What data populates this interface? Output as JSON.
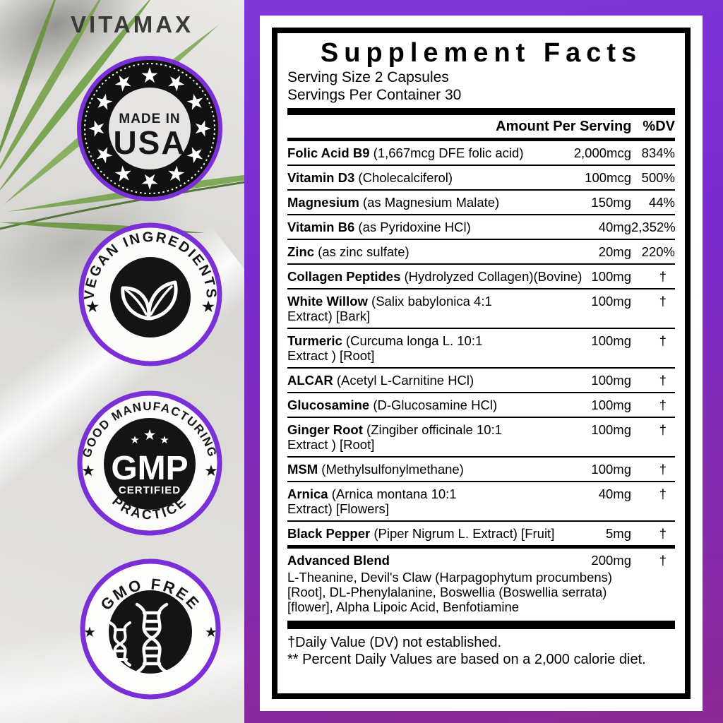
{
  "brand": {
    "name": "VITAMAX"
  },
  "icons": {
    "star": "★",
    "leaf": "leaf-sprout",
    "dna": "dna-helix",
    "dagger": "†"
  },
  "colors": {
    "accent_purple": "#7b2fd6",
    "gradient_top": "#8136dc",
    "gradient_bottom": "#8f2898",
    "panel_black": "#000000",
    "leaf_green": "#74a14a",
    "brand_gray": "#3a3a38"
  },
  "badges": {
    "made_in_usa": {
      "line1": "MADE IN",
      "line2": "USA"
    },
    "vegan": {
      "arc": "VEGAN INGREDIENTS"
    },
    "gmp": {
      "arc_top": "GOOD MANUFACTURING",
      "arc_bottom": "PRACTICE",
      "center": "GMP",
      "sub": "CERTIFIED"
    },
    "gmo": {
      "arc": "GMO FREE"
    }
  },
  "panel": {
    "title": "Supplement Facts",
    "serving_size": "Serving Size 2 Capsules",
    "servings_per_container": "Servings Per Container 30",
    "col_amount": "Amount Per Serving",
    "col_dv": "%DV",
    "rows": [
      {
        "name": "Folic Acid B9",
        "desc": " (1,667mcg DFE folic acid)",
        "amount": "2,000mcg",
        "dv": "834%"
      },
      {
        "name": "Vitamin D3",
        "desc": " (Cholecalciferol)",
        "amount": "100mcg",
        "dv": "500%"
      },
      {
        "name": "Magnesium",
        "desc": " (as Magnesium Malate)",
        "amount": "150mg",
        "dv": "44%"
      },
      {
        "name": "Vitamin B6",
        "desc": " (as Pyridoxine HCl)",
        "amount": "40mg",
        "dv": "2,352%"
      },
      {
        "name": "Zinc",
        "desc": " (as zinc sulfate)",
        "amount": "20mg",
        "dv": "220%"
      },
      {
        "name": "Collagen Peptides",
        "desc": " (Hydrolyzed Collagen)(Bovine)",
        "amount": "100mg",
        "dv": "†"
      },
      {
        "name": "White Willow",
        "desc": " (Salix babylonica 4:1",
        "desc2": "Extract) [Bark]",
        "amount": "100mg",
        "dv": "†"
      },
      {
        "name": "Turmeric",
        "desc": " (Curcuma longa L. 10:1",
        "desc2": "Extract ) [Root]",
        "amount": "100mg",
        "dv": "†"
      },
      {
        "name": "ALCAR",
        "desc": " (Acetyl L-Carnitine HCl)",
        "amount": "100mg",
        "dv": "†"
      },
      {
        "name": "Glucosamine",
        "desc": " (D-Glucosamine HCl)",
        "amount": "100mg",
        "dv": "†"
      },
      {
        "name": "Ginger Root",
        "desc": " (Zingiber officinale 10:1",
        "desc2": "Extract ) [Root]",
        "amount": "100mg",
        "dv": "†"
      },
      {
        "name": "MSM",
        "desc": " (Methylsulfonylmethane)",
        "amount": "100mg",
        "dv": "†"
      },
      {
        "name": "Arnica",
        "desc": " (Arnica montana 10:1",
        "desc2": "Extract) [Flowers]",
        "amount": "40mg",
        "dv": "†"
      },
      {
        "name": "Black Pepper",
        "desc": " (Piper Nigrum L. Extract) [Fruit]",
        "amount": "5mg",
        "dv": "†",
        "sep": "thick"
      },
      {
        "name": "Advanced Blend",
        "desc": "",
        "amount": "200mg",
        "dv": "†",
        "note_lines": [
          "L-Theanine, Devil's Claw (Harpagophytum procumbens)",
          "[Root], DL-Phenylalanine, Boswellia (Boswellia serrata)",
          "[flower], Alpha Lipoic Acid, Benfotiamine"
        ]
      }
    ],
    "footnote1": "†Daily Value (DV) not established.",
    "footnote2": "** Percent Daily Values are based on a 2,000 calorie diet."
  }
}
